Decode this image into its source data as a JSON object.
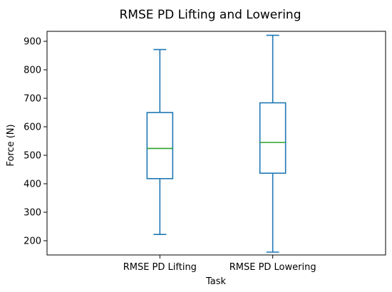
{
  "chart_data": {
    "type": "box",
    "title": "RMSE PD Lifting and Lowering",
    "xlabel": "Task",
    "ylabel": "Force (N)",
    "ylim": [
      150,
      935
    ],
    "yticks": [
      200,
      300,
      400,
      500,
      600,
      700,
      800,
      900
    ],
    "grid": false,
    "categories": [
      "RMSE PD Lifting",
      "RMSE PD Lowering"
    ],
    "boxes": [
      {
        "category": "RMSE PD Lifting",
        "whisker_low": 222,
        "q1": 418,
        "median": 524,
        "q3": 650,
        "whisker_high": 871
      },
      {
        "category": "RMSE PD Lowering",
        "whisker_low": 160,
        "q1": 437,
        "median": 545,
        "q3": 684,
        "whisker_high": 921
      }
    ],
    "colors": {
      "box": "#1f77b4",
      "median": "#2ca02c",
      "axis": "#000000"
    }
  }
}
